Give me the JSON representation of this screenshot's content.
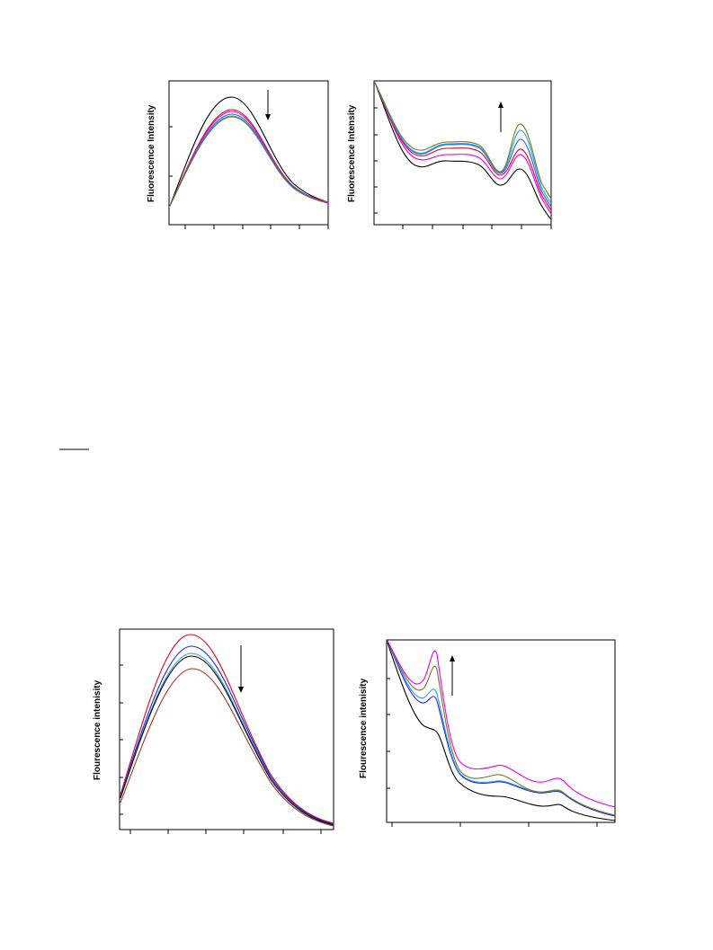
{
  "chart_data": [
    {
      "type": "line",
      "ylabel": "Fluorescence Intensity",
      "arrow_direction": "down",
      "series_colors": [
        "#000000",
        "#e8001c",
        "#e800e8",
        "#1f5fff",
        "#2aa0d8",
        "#6e7a1f"
      ]
    },
    {
      "type": "line",
      "ylabel": "Fluorescence Intensity",
      "arrow_direction": "up",
      "series_colors": [
        "#000000",
        "#e800e8",
        "#e8001c",
        "#1f5fff",
        "#2aa0d8",
        "#6e7a1f"
      ]
    },
    {
      "type": "line",
      "ylabel": "Flourescence intenisity",
      "arrow_direction": "down",
      "series_colors": [
        "#e8001c",
        "#1f1fe8",
        "#2aa0d8",
        "#000000",
        "#a0322a"
      ]
    },
    {
      "type": "line",
      "ylabel": "Flourescence intenisity",
      "arrow_direction": "up",
      "series_colors": [
        "#000000",
        "#1f1fe8",
        "#2aa0d8",
        "#6e7a1f",
        "#e800e8"
      ]
    }
  ]
}
